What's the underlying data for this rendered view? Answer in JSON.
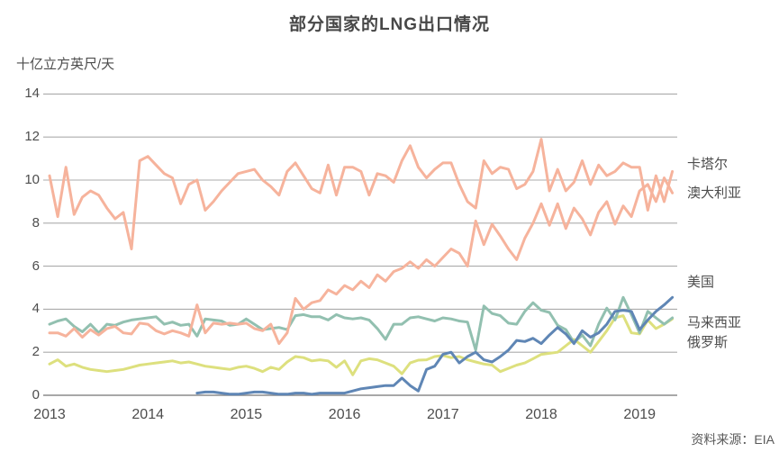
{
  "title": "部分国家的LNG出口情况",
  "y_axis_unit": "十亿立方英尺/天",
  "source": "资料来源：EIA",
  "colors": {
    "salmon": "#f6b39c",
    "teal": "#92c0b0",
    "yellow": "#dde07e",
    "blue": "#5f86b5",
    "gridline": "#ababab",
    "axis_zero_line": "#8c8c8c",
    "text": "#4d4d4d"
  },
  "chart_data": {
    "type": "line",
    "title": "部分国家的LNG出口情况",
    "ylabel": "十亿立方英尺/天",
    "xlabel": "",
    "x_start": "2013-01",
    "x_interval": "monthly",
    "x_tick_labels": [
      "2013",
      "2014",
      "2015",
      "2016",
      "2017",
      "2018",
      "2019"
    ],
    "y_ticks": [
      14,
      12,
      10,
      8,
      6,
      4,
      2,
      0
    ],
    "ylim": [
      0,
      14
    ],
    "grid": "horizontal",
    "legend_position": "right-outside",
    "series": [
      {
        "name": "俄罗斯",
        "color": "#dde07e",
        "values": [
          1.45,
          1.65,
          1.35,
          1.45,
          1.3,
          1.2,
          1.15,
          1.1,
          1.15,
          1.2,
          1.3,
          1.4,
          1.45,
          1.5,
          1.55,
          1.6,
          1.5,
          1.55,
          1.45,
          1.35,
          1.3,
          1.25,
          1.2,
          1.3,
          1.35,
          1.25,
          1.1,
          1.3,
          1.2,
          1.55,
          1.8,
          1.75,
          1.6,
          1.65,
          1.6,
          1.3,
          1.6,
          0.95,
          1.6,
          1.7,
          1.65,
          1.5,
          1.35,
          1.0,
          1.5,
          1.63,
          1.65,
          1.8,
          1.85,
          1.75,
          1.8,
          1.65,
          1.55,
          1.45,
          1.4,
          1.1,
          1.25,
          1.4,
          1.5,
          1.7,
          1.9,
          1.95,
          2.0,
          2.3,
          2.6,
          2.3,
          2.0,
          2.5,
          3.0,
          3.6,
          3.7,
          2.9,
          2.85,
          3.5,
          3.1,
          3.3,
          3.55
        ]
      },
      {
        "name": "马来西亚",
        "color": "#92c0b0",
        "values": [
          3.3,
          3.45,
          3.55,
          3.2,
          2.95,
          3.3,
          2.9,
          3.3,
          3.25,
          3.4,
          3.5,
          3.55,
          3.6,
          3.65,
          3.3,
          3.4,
          3.25,
          3.3,
          2.75,
          3.55,
          3.5,
          3.45,
          3.25,
          3.3,
          3.55,
          3.3,
          3.05,
          3.1,
          3.15,
          3.05,
          3.7,
          3.75,
          3.65,
          3.65,
          3.5,
          3.75,
          3.6,
          3.55,
          3.6,
          3.5,
          3.1,
          2.6,
          3.3,
          3.3,
          3.6,
          3.65,
          3.55,
          3.45,
          3.6,
          3.55,
          3.45,
          3.4,
          2.1,
          4.15,
          3.8,
          3.7,
          3.35,
          3.3,
          3.9,
          4.3,
          3.95,
          3.85,
          3.25,
          3.05,
          2.45,
          2.8,
          2.3,
          3.3,
          4.05,
          3.5,
          4.55,
          3.75,
          2.9,
          3.9,
          3.6,
          3.3,
          3.6
        ]
      },
      {
        "name": "澳大利亚",
        "color": "#f6b39c",
        "values": [
          2.9,
          2.9,
          2.75,
          3.1,
          2.7,
          3.05,
          2.8,
          3.1,
          3.2,
          2.9,
          2.85,
          3.35,
          3.3,
          3.0,
          2.85,
          3.0,
          2.9,
          2.75,
          4.2,
          2.9,
          3.35,
          3.3,
          3.35,
          3.3,
          3.35,
          3.1,
          3.0,
          3.3,
          2.4,
          2.9,
          4.5,
          4.0,
          4.3,
          4.4,
          4.9,
          4.7,
          5.1,
          4.9,
          5.3,
          5.0,
          5.6,
          5.3,
          5.75,
          5.9,
          6.2,
          5.9,
          6.3,
          6.0,
          6.4,
          6.8,
          6.6,
          6.0,
          8.1,
          7.0,
          7.95,
          7.4,
          6.8,
          6.3,
          7.3,
          8.0,
          8.9,
          7.9,
          8.9,
          7.75,
          8.7,
          8.2,
          7.45,
          8.5,
          9.0,
          7.95,
          8.8,
          8.3,
          9.5,
          9.8,
          9.0,
          10.1,
          9.4
        ]
      },
      {
        "name": "卡塔尔",
        "color": "#f6b39c",
        "values": [
          10.2,
          8.3,
          10.6,
          8.4,
          9.2,
          9.5,
          9.3,
          8.7,
          8.2,
          8.5,
          6.8,
          10.9,
          11.1,
          10.7,
          10.3,
          10.1,
          8.9,
          9.8,
          10.0,
          8.6,
          9.0,
          9.5,
          9.9,
          10.3,
          10.4,
          10.5,
          10.0,
          9.7,
          9.3,
          10.4,
          10.8,
          10.2,
          9.6,
          9.4,
          10.7,
          9.3,
          10.6,
          10.6,
          10.4,
          9.3,
          10.3,
          10.2,
          9.9,
          10.9,
          11.6,
          10.6,
          10.1,
          10.5,
          10.8,
          10.8,
          9.8,
          9.0,
          8.7,
          10.9,
          10.3,
          10.6,
          10.5,
          9.6,
          9.8,
          10.4,
          11.9,
          9.5,
          10.5,
          9.5,
          9.9,
          10.9,
          9.8,
          10.7,
          10.2,
          10.4,
          10.8,
          10.6,
          10.6,
          8.6,
          10.2,
          9.0,
          10.4
        ]
      },
      {
        "name": "美国",
        "color": "#5f86b5",
        "values": [
          null,
          null,
          null,
          null,
          null,
          null,
          null,
          null,
          null,
          null,
          null,
          null,
          null,
          null,
          null,
          null,
          null,
          null,
          0.1,
          0.15,
          0.15,
          0.1,
          0.05,
          0.05,
          0.1,
          0.15,
          0.15,
          0.1,
          0.05,
          0.05,
          0.1,
          0.1,
          0.05,
          0.1,
          0.1,
          0.1,
          0.1,
          0.2,
          0.3,
          0.35,
          0.4,
          0.45,
          0.45,
          0.8,
          0.45,
          0.2,
          1.2,
          1.35,
          1.9,
          2.0,
          1.5,
          1.8,
          2.0,
          1.65,
          1.55,
          1.8,
          2.1,
          2.55,
          2.5,
          2.65,
          2.4,
          2.8,
          3.15,
          2.85,
          2.4,
          3.0,
          2.7,
          2.9,
          3.3,
          3.9,
          3.95,
          3.9,
          3.05,
          3.5,
          3.9,
          4.2,
          4.55
        ]
      }
    ],
    "legend_series_order": [
      "卡塔尔",
      "澳大利亚",
      "美国",
      "马来西亚",
      "俄罗斯"
    ]
  }
}
